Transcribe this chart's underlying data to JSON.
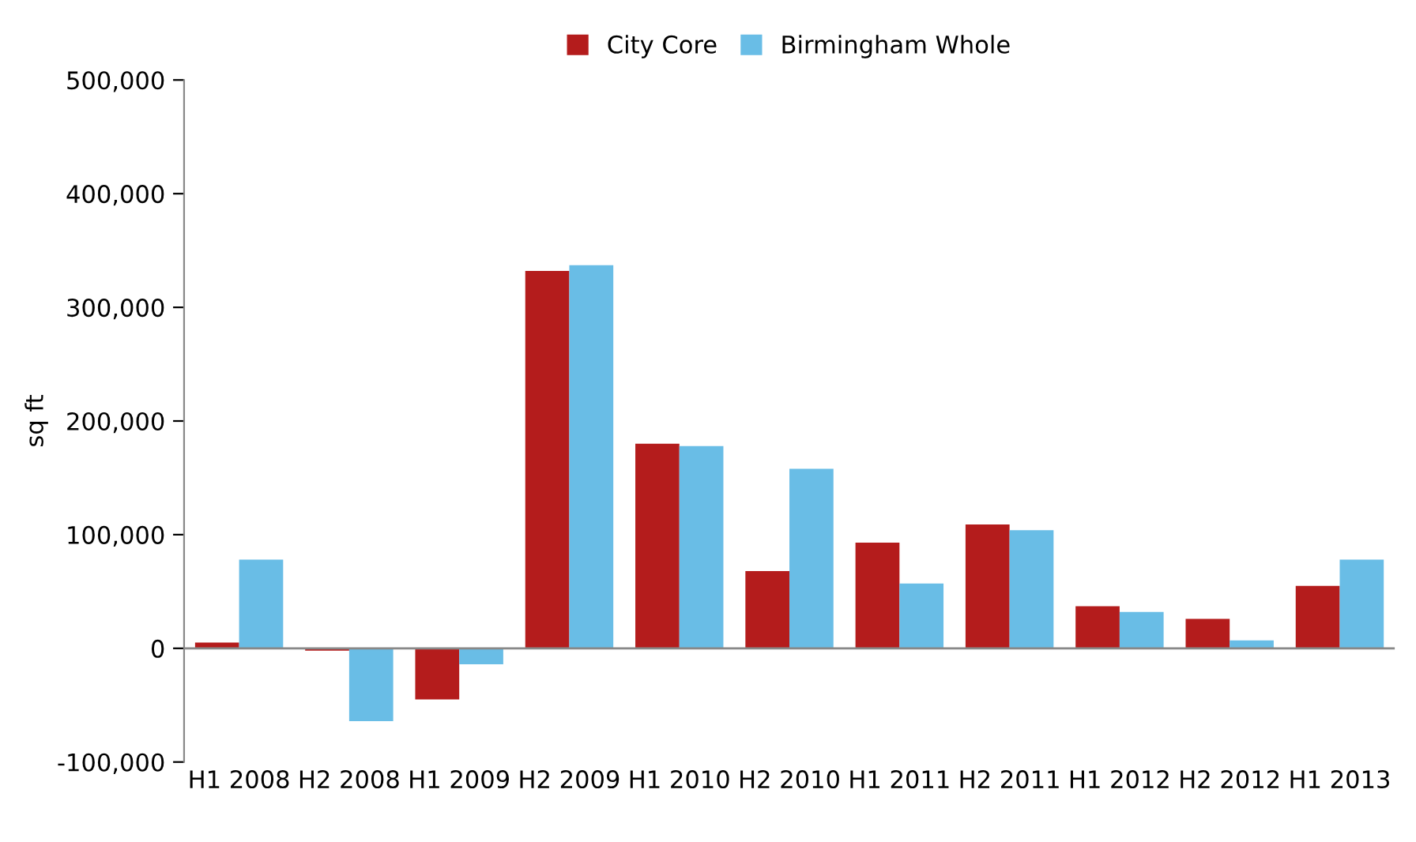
{
  "chart_data": {
    "type": "bar",
    "ylabel": "sq ft",
    "categories": [
      "H1 2008",
      "H2 2008",
      "H1 2009",
      "H2 2009",
      "H1 2010",
      "H2 2010",
      "H1 2011",
      "H2 2011",
      "H1 2012",
      "H2 2012",
      "H1 2013"
    ],
    "series": [
      {
        "name": "City Core",
        "color": "#b41c1c",
        "values": [
          5000,
          -2000,
          -45000,
          332000,
          180000,
          68000,
          93000,
          109000,
          37000,
          26000,
          55000
        ]
      },
      {
        "name": "Birmingham Whole",
        "color": "#69bde6",
        "values": [
          78000,
          -64000,
          -14000,
          337000,
          178000,
          158000,
          57000,
          104000,
          32000,
          7000,
          78000
        ]
      }
    ],
    "ylim": [
      -100000,
      500000
    ],
    "yticks": [
      {
        "value": -100000,
        "label": "-100,000"
      },
      {
        "value": 0,
        "label": "0"
      },
      {
        "value": 100000,
        "label": "100,000"
      },
      {
        "value": 200000,
        "label": "200,000"
      },
      {
        "value": 300000,
        "label": "300,000"
      },
      {
        "value": 400000,
        "label": "400,000"
      },
      {
        "value": 500000,
        "label": "500,000"
      }
    ],
    "legend": "top"
  }
}
